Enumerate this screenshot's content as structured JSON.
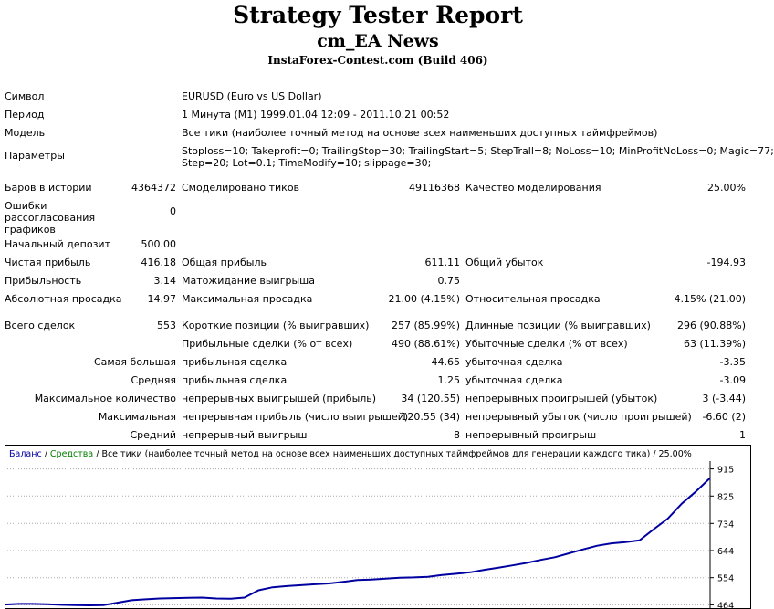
{
  "header": {
    "title": "Strategy Tester Report",
    "ea": "cm_EA News",
    "server": "InstaForex-Contest.com (Build 406)"
  },
  "info": {
    "symbol_label": "Символ",
    "symbol_value": "EURUSD (Euro vs US Dollar)",
    "period_label": "Период",
    "period_value": "1 Минута (M1) 1999.01.04 12:09 - 2011.10.21 00:52",
    "model_label": "Модель",
    "model_value": "Все тики (наиболее точный метод на основе всех наименьших доступных таймфреймов)",
    "params_label": "Параметры",
    "params_line1": "Stoploss=10; Takeprofit=0; TrailingStop=30; TrailingStart=5; StepTrall=8; NoLoss=10; MinProfitNoLoss=0; Magic=77;",
    "params_line2": "Step=20; Lot=0.1; TimeModify=10; slippage=30;"
  },
  "stats": {
    "bars_label": "Баров в истории",
    "bars_value": "4364372",
    "ticks_label": "Смоделировано тиков",
    "ticks_value": "49116368",
    "quality_label": "Качество моделирования",
    "quality_value": "25.00%",
    "errors_label": "Ошибки рассогласования графиков",
    "errors_value": "0",
    "deposit_label": "Начальный депозит",
    "deposit_value": "500.00",
    "net_label": "Чистая прибыль",
    "net_value": "416.18",
    "gross_profit_label": "Общая прибыль",
    "gross_profit_value": "611.11",
    "gross_loss_label": "Общий убыток",
    "gross_loss_value": "-194.93",
    "pf_label": "Прибыльность",
    "pf_value": "3.14",
    "expect_label": "Матожидание выигрыша",
    "expect_value": "0.75",
    "abs_dd_label": "Абсолютная просадка",
    "abs_dd_value": "14.97",
    "max_dd_label": "Максимальная просадка",
    "max_dd_value": "21.00 (4.15%)",
    "rel_dd_label": "Относительная просадка",
    "rel_dd_value": "4.15% (21.00)",
    "trades_label": "Всего сделок",
    "trades_value": "553",
    "short_label": "Короткие позиции (% выигравших)",
    "short_value": "257 (85.99%)",
    "long_label": "Длинные позиции (% выигравших)",
    "long_value": "296 (90.88%)",
    "win_trades_label": "Прибыльные сделки (% от всех)",
    "win_trades_value": "490 (88.61%)",
    "loss_trades_label": "Убыточные сделки (% от всех)",
    "loss_trades_value": "63 (11.39%)",
    "largest_label": "Самая большая",
    "largest_profit_label": "прибыльная сделка",
    "largest_profit_value": "44.65",
    "largest_loss_label": "убыточная сделка",
    "largest_loss_value": "-3.35",
    "average_label": "Средняя",
    "average_profit_label": "прибыльная сделка",
    "average_profit_value": "1.25",
    "average_loss_label": "убыточная сделка",
    "average_loss_value": "-3.09",
    "max_count_label": "Максимальное количество",
    "max_cons_wins_label": "непрерывных выигрышей (прибыль)",
    "max_cons_wins_value": "34 (120.55)",
    "max_cons_losses_label": "непрерывных проигрышей (убыток)",
    "max_cons_losses_value": "3 (-3.44)",
    "maximal_label": "Максимальная",
    "max_cons_profit_label": "непрерывная прибыль (число выигрышей)",
    "max_cons_profit_value": "120.55 (34)",
    "max_cons_loss_label": "непрерывный убыток (число проигрышей)",
    "max_cons_loss_value": "-6.60 (2)",
    "avg_cons_label": "Средний",
    "avg_cons_wins_label": "непрерывный выигрыш",
    "avg_cons_wins_value": "8",
    "avg_cons_losses_label": "непрерывный проигрыш",
    "avg_cons_losses_value": "1"
  },
  "chart_header": {
    "balance": "Баланс",
    "sep1": " / ",
    "equity": "Средства",
    "sep2": " / ",
    "text": "Все тики (наиболее точный метод на основе всех наименьших доступных таймфреймов для генерации каждого тика) / 25.00%"
  },
  "colors": {
    "balance": "#0000a0",
    "equity": "#008000",
    "grid": "#aaaaaa"
  },
  "chart_data": {
    "type": "line",
    "title": "",
    "xlabel": "",
    "ylabel": "",
    "y_ticks": [
      "915",
      "825",
      "734",
      "644",
      "554",
      "464"
    ],
    "ylim": [
      450,
      935
    ],
    "grid": true,
    "series": [
      {
        "name": "Баланс",
        "x": [
          0,
          20,
          40,
          60,
          80,
          100,
          120,
          140,
          160,
          180,
          200,
          220,
          240,
          260,
          280,
          300,
          320,
          340,
          360,
          380,
          400,
          420,
          440,
          460,
          480,
          500,
          520,
          540,
          560,
          580,
          600,
          620,
          640,
          660,
          680,
          700,
          720,
          740,
          760,
          780,
          800,
          820,
          840,
          860,
          880,
          900,
          920,
          940,
          960,
          980,
          1000
        ],
        "y": [
          465,
          467,
          467,
          466,
          464,
          463,
          462,
          463,
          471,
          479,
          482,
          485,
          486,
          487,
          488,
          485,
          484,
          488,
          512,
          522,
          526,
          529,
          532,
          535,
          540,
          546,
          548,
          551,
          554,
          555,
          557,
          563,
          567,
          572,
          580,
          587,
          595,
          603,
          613,
          622,
          635,
          648,
          660,
          668,
          672,
          678,
          715,
          750,
          800,
          840,
          885
        ]
      }
    ]
  }
}
